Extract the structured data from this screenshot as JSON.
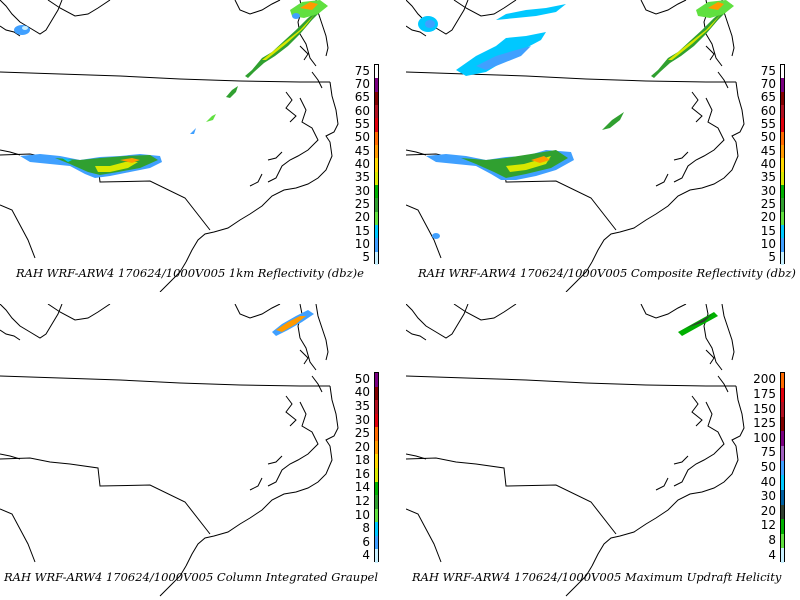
{
  "panels": [
    {
      "id": "refl-1km",
      "caption": "RAH WRF-ARW4 170624/1000V005  1km Reflectivity (dbz)e",
      "legend_levels": [
        "75",
        "70",
        "65",
        "60",
        "55",
        "50",
        "45",
        "40",
        "35",
        "30",
        "25",
        "20",
        "15",
        "10",
        "5"
      ],
      "legend_colors": [
        "#ffffff",
        "#7a0080",
        "#800000",
        "#b01020",
        "#e0000c",
        "#ff6a00",
        "#ff9a00",
        "#ffd800",
        "#d8e800",
        "#00b000",
        "#30a030",
        "#60e040",
        "#00c8ff",
        "#40a0ff",
        "#c8f0ff"
      ]
    },
    {
      "id": "refl-composite",
      "caption": "RAH WRF-ARW4 170624/1000V005  Composite Reflectivity (dbz)",
      "legend_levels": [
        "75",
        "70",
        "65",
        "60",
        "55",
        "50",
        "45",
        "40",
        "35",
        "30",
        "25",
        "20",
        "15",
        "10",
        "5"
      ],
      "legend_colors": [
        "#ffffff",
        "#7a0080",
        "#800000",
        "#b01020",
        "#e0000c",
        "#ff6a00",
        "#ff9a00",
        "#ffd800",
        "#d8e800",
        "#00b000",
        "#30a030",
        "#60e040",
        "#00c8ff",
        "#40a0ff",
        "#c8f0ff"
      ]
    },
    {
      "id": "graupel",
      "caption": "RAH WRF-ARW4 170624/1000V005  Column Integrated Graupel",
      "legend_levels": [
        "50",
        "40",
        "35",
        "30",
        "25",
        "20",
        "18",
        "16",
        "14",
        "12",
        "10",
        "8",
        "6",
        "4"
      ],
      "legend_colors": [
        "#7a0080",
        "#800000",
        "#b01020",
        "#e0000c",
        "#ff6a00",
        "#ff9a00",
        "#ffd800",
        "#d8e800",
        "#00b000",
        "#30a030",
        "#60e040",
        "#00c8ff",
        "#40a0ff",
        "#c8f0ff"
      ]
    },
    {
      "id": "updraft-helicity",
      "caption": "RAH WRF-ARW4 170624/1000V005  Maximum Updraft Helicity",
      "legend_levels": [
        "200",
        "175",
        "150",
        "125",
        "100",
        "75",
        "50",
        "40",
        "30",
        "20",
        "12",
        "8",
        "4"
      ],
      "legend_colors": [
        "#ff6a00",
        "#e0000c",
        "#b01020",
        "#800000",
        "#7a0080",
        "#a060c0",
        "#40a0ff",
        "#00c8ff",
        "#0060a0",
        "#304030",
        "#00b000",
        "#60e040",
        "#c8f0ff"
      ]
    }
  ]
}
